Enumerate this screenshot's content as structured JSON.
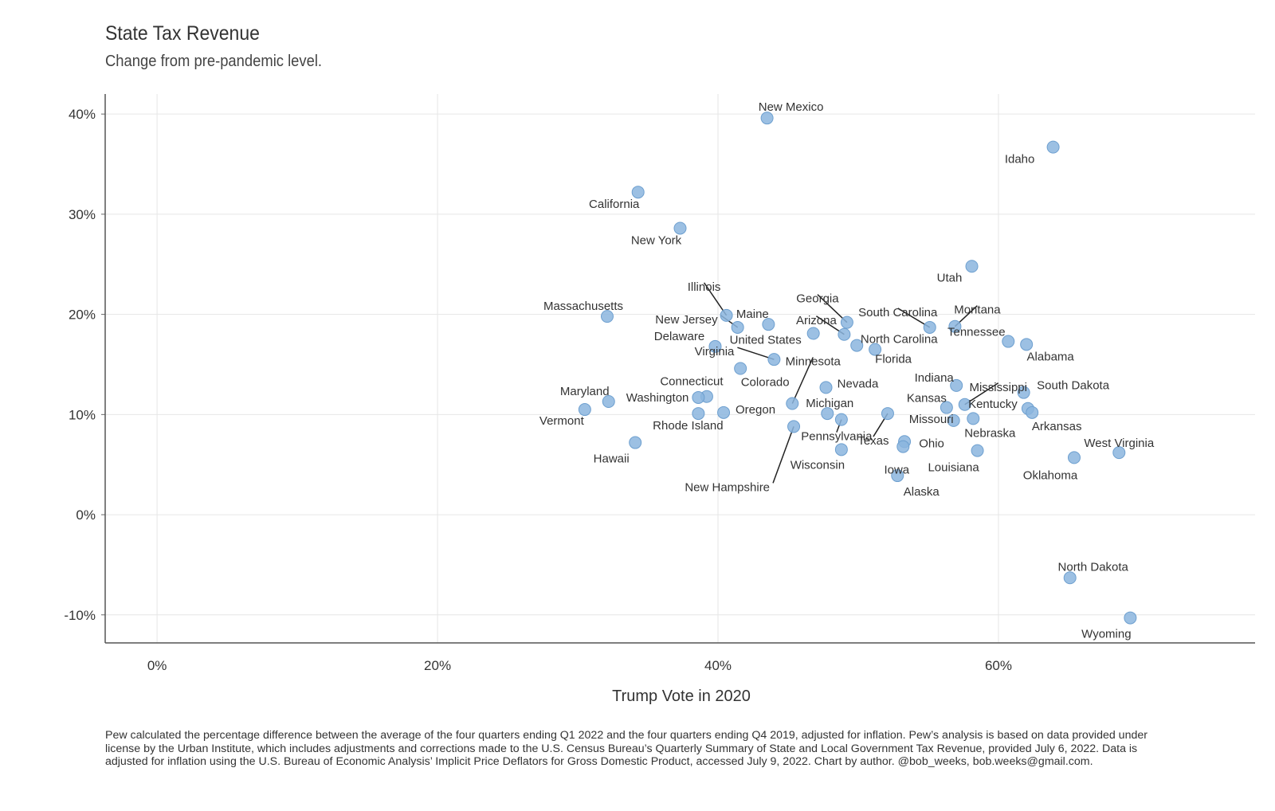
{
  "chart_data": {
    "type": "scatter",
    "title": "State Tax Revenue",
    "subtitle": "Change from pre-pandemic level.",
    "xlabel": "Trump Vote in 2020",
    "ylabel": "",
    "xlim": [
      -0.037,
      0.783
    ],
    "ylim": [
      -0.128,
      0.42
    ],
    "xticks": [
      0,
      0.2,
      0.4,
      0.6
    ],
    "xtick_labels": [
      "0%",
      "20%",
      "40%",
      "60%"
    ],
    "yticks": [
      -0.1,
      0,
      0.1,
      0.2,
      0.3,
      0.4
    ],
    "ytick_labels": [
      "-10%",
      "0%",
      "10%",
      "20%",
      "30%",
      "40%"
    ],
    "grid": true,
    "marker_color": "#8bb5de",
    "points": [
      {
        "label": "New Mexico",
        "x": 0.435,
        "y": 0.396
      },
      {
        "label": "Idaho",
        "x": 0.639,
        "y": 0.367
      },
      {
        "label": "California",
        "x": 0.343,
        "y": 0.322
      },
      {
        "label": "New York",
        "x": 0.373,
        "y": 0.286
      },
      {
        "label": "Utah",
        "x": 0.581,
        "y": 0.248
      },
      {
        "label": "Illinois",
        "x": 0.406,
        "y": 0.199
      },
      {
        "label": "Massachusetts",
        "x": 0.321,
        "y": 0.198
      },
      {
        "label": "Maine",
        "x": 0.436,
        "y": 0.19
      },
      {
        "label": "New Jersey",
        "x": 0.414,
        "y": 0.187
      },
      {
        "label": "Georgia",
        "x": 0.492,
        "y": 0.192
      },
      {
        "label": "South Carolina",
        "x": 0.551,
        "y": 0.187
      },
      {
        "label": "Montana",
        "x": 0.569,
        "y": 0.188
      },
      {
        "label": "Arizona",
        "x": 0.49,
        "y": 0.18
      },
      {
        "label": "United States",
        "x": 0.468,
        "y": 0.181
      },
      {
        "label": "Tennessee",
        "x": 0.607,
        "y": 0.173
      },
      {
        "label": "Alabama",
        "x": 0.62,
        "y": 0.17
      },
      {
        "label": "North Carolina",
        "x": 0.499,
        "y": 0.169
      },
      {
        "label": "Delaware",
        "x": 0.398,
        "y": 0.168
      },
      {
        "label": "Florida",
        "x": 0.512,
        "y": 0.165
      },
      {
        "label": "Virginia",
        "x": 0.44,
        "y": 0.155
      },
      {
        "label": "Colorado",
        "x": 0.416,
        "y": 0.146
      },
      {
        "label": "Indiana",
        "x": 0.57,
        "y": 0.129
      },
      {
        "label": "Nevada",
        "x": 0.477,
        "y": 0.127
      },
      {
        "label": "Mississippi",
        "x": 0.576,
        "y": 0.11
      },
      {
        "label": "South Dakota",
        "x": 0.618,
        "y": 0.122
      },
      {
        "label": "Connecticut",
        "x": 0.392,
        "y": 0.118
      },
      {
        "label": "Maryland",
        "x": 0.322,
        "y": 0.113
      },
      {
        "label": "Minnesota",
        "x": 0.453,
        "y": 0.111
      },
      {
        "label": "Kentucky",
        "x": 0.621,
        "y": 0.106
      },
      {
        "label": "Arkansas",
        "x": 0.624,
        "y": 0.102
      },
      {
        "label": "Kansas",
        "x": 0.563,
        "y": 0.107
      },
      {
        "label": "Vermont",
        "x": 0.305,
        "y": 0.105
      },
      {
        "label": "Washington",
        "x": 0.386,
        "y": 0.117
      },
      {
        "label": "Oregon",
        "x": 0.404,
        "y": 0.102
      },
      {
        "label": "Rhode Island",
        "x": 0.386,
        "y": 0.101
      },
      {
        "label": "Michigan",
        "x": 0.478,
        "y": 0.101
      },
      {
        "label": "Texas",
        "x": 0.521,
        "y": 0.101
      },
      {
        "label": "Missouri",
        "x": 0.568,
        "y": 0.094
      },
      {
        "label": "Nebraska",
        "x": 0.582,
        "y": 0.096
      },
      {
        "label": "Pennsylvania",
        "x": 0.488,
        "y": 0.095
      },
      {
        "label": "New Hampshire",
        "x": 0.454,
        "y": 0.088
      },
      {
        "label": "Ohio",
        "x": 0.533,
        "y": 0.073
      },
      {
        "label": "Iowa",
        "x": 0.532,
        "y": 0.068
      },
      {
        "label": "Hawaii",
        "x": 0.341,
        "y": 0.072
      },
      {
        "label": "Wisconsin",
        "x": 0.488,
        "y": 0.065
      },
      {
        "label": "Louisiana",
        "x": 0.585,
        "y": 0.064
      },
      {
        "label": "Oklahoma",
        "x": 0.654,
        "y": 0.057
      },
      {
        "label": "West Virginia",
        "x": 0.686,
        "y": 0.062
      },
      {
        "label": "Alaska",
        "x": 0.528,
        "y": 0.039
      },
      {
        "label": "North Dakota",
        "x": 0.651,
        "y": -0.063
      },
      {
        "label": "Wyoming",
        "x": 0.694,
        "y": -0.103
      }
    ]
  },
  "caption": "Pew calculated the percentage difference between the average of the four quarters ending Q1 2022 and the four quarters ending Q4 2019, adjusted for inflation. Pew’s analysis is based on data provided under license by the Urban Institute, which includes adjustments and corrections made to the U.S. Census Bureau’s Quarterly Summary of State and Local Government Tax Revenue, provided July 6, 2022. Data is adjusted for inflation using the U.S. Bureau of Economic Analysis’ Implicit Price Deflators for Gross Domestic Product, accessed July 9, 2022. Chart by author. @bob_weeks, bob.weeks@gmail.com."
}
